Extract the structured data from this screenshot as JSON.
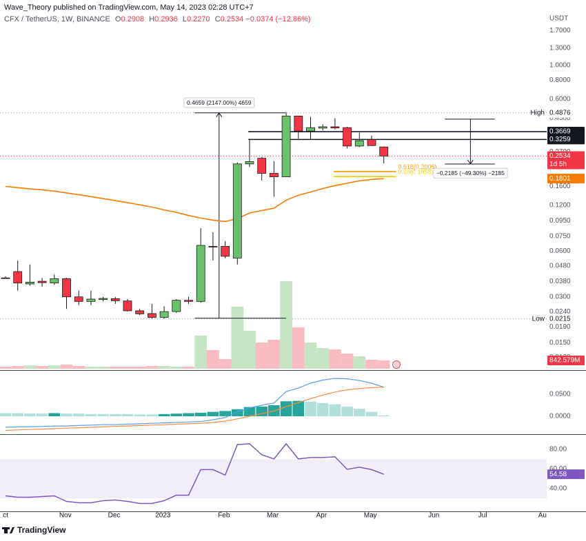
{
  "header": {
    "publisher": "Wave_Theory published on TradingView.com, May 14, 2023 02:28 UTC+7",
    "symbol": "CFX / TetherUS, 1W, BINANCE",
    "ohlc": [
      {
        "key": "O",
        "value": 0.2908,
        "label": "0.2908"
      },
      {
        "key": "H",
        "value": 0.2936,
        "label": "0.2936"
      },
      {
        "key": "L",
        "value": 0.227,
        "label": "0.2270"
      },
      {
        "key": "C",
        "value": 0.2534,
        "label": "0.2534"
      }
    ],
    "change": {
      "value": -0.0374,
      "label": "−0.0374"
    },
    "change_pct": {
      "value": -12.86,
      "label": "(−12.86%)"
    }
  },
  "footer": {
    "brand": "TradingView"
  },
  "chart_data": [
    {
      "type": "candlestick",
      "unit": "USDT",
      "log_scale": true,
      "grid": false,
      "x": [
        0,
        1,
        2,
        3,
        4,
        5,
        6,
        7,
        8,
        9,
        10,
        11,
        12,
        13,
        14,
        15,
        16,
        17,
        18,
        19,
        20,
        21,
        22,
        23,
        24,
        25,
        26,
        27,
        28,
        29,
        30,
        31
      ],
      "xlim": [
        -0.452,
        44.35
      ],
      "xticks": [
        {
          "value": 0,
          "label": "ct"
        },
        {
          "value": 4.9,
          "label": "Nov"
        },
        {
          "value": 8.9,
          "label": "Dec"
        },
        {
          "value": 12.9,
          "label": "2023"
        },
        {
          "value": 17.9,
          "label": "Feb"
        },
        {
          "value": 21.9,
          "label": "Mar"
        },
        {
          "value": 25.9,
          "label": "Apr"
        },
        {
          "value": 29.9,
          "label": "May"
        },
        {
          "value": 35.1,
          "label": "Jun"
        },
        {
          "value": 39.1,
          "label": "Jul"
        },
        {
          "value": 44.0,
          "label": "Au"
        }
      ],
      "open": [
        0.04,
        0.044,
        0.0365,
        0.038,
        0.037,
        0.0395,
        0.03,
        0.028,
        0.0288,
        0.0292,
        0.0282,
        0.0243,
        0.0233,
        0.022,
        0.024,
        0.0285,
        0.028,
        0.0645,
        0.0645,
        0.054,
        0.225,
        0.245,
        0.195,
        0.185,
        0.465,
        0.37,
        0.387,
        0.395,
        0.39,
        0.295,
        0.325,
        0.2908
      ],
      "high": [
        0.041,
        0.052,
        0.049,
        0.04,
        0.042,
        0.04,
        0.033,
        0.033,
        0.03,
        0.03,
        0.029,
        0.025,
        0.027,
        0.026,
        0.029,
        0.03,
        0.085,
        0.08,
        0.07,
        0.23,
        0.33,
        0.25,
        0.235,
        0.4876,
        0.465,
        0.46,
        0.41,
        0.45,
        0.395,
        0.36,
        0.345,
        0.2936
      ],
      "low": [
        0.0395,
        0.033,
        0.0355,
        0.035,
        0.036,
        0.025,
        0.0265,
        0.0265,
        0.028,
        0.027,
        0.024,
        0.0228,
        0.0215,
        0.0215,
        0.0235,
        0.027,
        0.0275,
        0.052,
        0.054,
        0.049,
        0.215,
        0.175,
        0.137,
        0.185,
        0.33,
        0.325,
        0.375,
        0.38,
        0.285,
        0.29,
        0.295,
        0.227
      ],
      "close": [
        0.0398,
        0.037,
        0.0375,
        0.0372,
        0.0395,
        0.03,
        0.028,
        0.029,
        0.0293,
        0.0283,
        0.0243,
        0.0232,
        0.022,
        0.024,
        0.0285,
        0.028,
        0.0655,
        0.064,
        0.0555,
        0.225,
        0.233,
        0.195,
        0.185,
        0.465,
        0.37,
        0.39,
        0.395,
        0.388,
        0.295,
        0.32,
        0.297,
        0.2534
      ],
      "up_color": "#6cbf6c",
      "down_color": "#f23645",
      "ylim": [
        0.0101,
        2.43
      ],
      "yticks": [
        {
          "value": 1.7,
          "label": "1.7000"
        },
        {
          "value": 1.3,
          "label": "1.3000"
        },
        {
          "value": 1.0,
          "label": "1.0000"
        },
        {
          "value": 0.8,
          "label": "0.8000"
        },
        {
          "value": 0.6,
          "label": "0.6000"
        },
        {
          "value": 0.45,
          "label": "0.4500"
        },
        {
          "value": 0.27,
          "label": "0.2700"
        },
        {
          "value": 0.16,
          "label": "0.1600"
        },
        {
          "value": 0.12,
          "label": "0.1200"
        },
        {
          "value": 0.095,
          "label": "0.0950"
        },
        {
          "value": 0.075,
          "label": "0.0750"
        },
        {
          "value": 0.06,
          "label": "0.0600"
        },
        {
          "value": 0.048,
          "label": "0.0480"
        },
        {
          "value": 0.038,
          "label": "0.0380"
        },
        {
          "value": 0.03,
          "label": "0.0300"
        },
        {
          "value": 0.024,
          "label": "0.0240"
        },
        {
          "value": 0.019,
          "label": "0.0190"
        },
        {
          "value": 0.015,
          "label": "0.0150"
        },
        {
          "value": 0.012,
          "label": "0.0120"
        }
      ],
      "ema": {
        "color": "#f57c00",
        "values": [
          0.16,
          0.157,
          0.154,
          0.152,
          0.149,
          0.145,
          0.141,
          0.137,
          0.133,
          0.129,
          0.125,
          0.121,
          0.117,
          0.112,
          0.108,
          0.103,
          0.099,
          0.096,
          0.094,
          0.098,
          0.107,
          0.111,
          0.115,
          0.13,
          0.14,
          0.147,
          0.155,
          0.162,
          0.168,
          0.174,
          0.178,
          0.1801
        ],
        "last_label": {
          "value": 0.1801,
          "label": "0.1801"
        }
      },
      "last_price": {
        "value": 0.2534,
        "label": "0.2534",
        "countdown": "1d 5h"
      },
      "high_marker": {
        "name": "High",
        "value": 0.4876,
        "label": "0.4876"
      },
      "low_marker": {
        "name": "Low",
        "value": 0.0215,
        "label": "0.0215"
      },
      "levels": [
        {
          "value": 0.3669,
          "label": "0.3669",
          "from_x": 19.9
        },
        {
          "value": 0.3259,
          "label": "0.3259",
          "from_x": 19.9
        }
      ],
      "fib": [
        {
          "label": "0.618(0.2006)",
          "value": 0.2006,
          "color": "#f7a21b",
          "from_x": 26.9,
          "to_x": 32.0
        },
        {
          "label": "0.65(0.1858)",
          "value": 0.1858,
          "color": "#f2d21b",
          "from_x": 26.9,
          "to_x": 32.0
        }
      ],
      "measures": [
        {
          "label": "0.4659 (2147.00%) 4659",
          "from": 0.0217,
          "to": 0.4876,
          "x": 17.5,
          "x0": 15.5,
          "x1": 23.0
        },
        {
          "label": "−0.2185 (−49.30%) −2185",
          "from": 0.4432,
          "to": 0.2247,
          "x": 38.1,
          "x0": 36.0,
          "x1": 40.1
        }
      ]
    },
    {
      "type": "bar",
      "values": [
        210,
        280,
        350,
        280,
        350,
        420,
        280,
        210,
        210,
        210,
        210,
        210,
        280,
        280,
        210,
        210,
        3365,
        1893,
        981,
        6309,
        3856,
        2664,
        2944,
        8903,
        4206,
        2664,
        2103,
        1963,
        1542,
        1262,
        911,
        842.579
      ],
      "ylim": [
        0,
        15000
      ],
      "up_color": "#c6e5c5",
      "down_color": "#f8bcc2",
      "last_label": {
        "value": 842.579,
        "label": "842.579M"
      }
    },
    {
      "type": "macd",
      "ylim": [
        -0.0328,
        0.1
      ],
      "yticks": [
        {
          "value": 0.05,
          "label": "0.0500"
        },
        {
          "value": 0,
          "label": "0.0000"
        }
      ],
      "macd": {
        "color": "#5b9cf6",
        "values": [
          -0.025,
          -0.024,
          -0.024,
          -0.023,
          -0.022,
          -0.022,
          -0.021,
          -0.02,
          -0.019,
          -0.019,
          -0.018,
          -0.017,
          -0.016,
          -0.015,
          -0.014,
          -0.013,
          -0.012,
          -0.008,
          -0.003,
          0.01,
          0.019,
          0.025,
          0.03,
          0.056,
          0.064,
          0.075,
          0.082,
          0.086,
          0.085,
          0.081,
          0.075,
          0.066
        ]
      },
      "signal": {
        "color": "#ff8a3d",
        "values": [
          -0.032,
          -0.031,
          -0.03,
          -0.029,
          -0.028,
          -0.027,
          -0.026,
          -0.025,
          -0.024,
          -0.023,
          -0.022,
          -0.021,
          -0.02,
          -0.019,
          -0.018,
          -0.017,
          -0.016,
          -0.014,
          -0.011,
          -0.006,
          0.0,
          0.006,
          0.012,
          0.022,
          0.031,
          0.04,
          0.048,
          0.055,
          0.06,
          0.063,
          0.065,
          0.066
        ]
      },
      "histogram": {
        "rising_color": "#26a69a",
        "falling_color": "#b2dfdb",
        "values": [
          0.007,
          0.007,
          0.006,
          0.006,
          0.007,
          0.006,
          0.006,
          0.005,
          0.005,
          0.005,
          0.005,
          0.004,
          0.004,
          0.005,
          0.006,
          0.007,
          0.008,
          0.01,
          0.012,
          0.016,
          0.021,
          0.022,
          0.025,
          0.034,
          0.035,
          0.033,
          0.03,
          0.027,
          0.022,
          0.017,
          0.01,
          0.002
        ]
      }
    },
    {
      "type": "line",
      "color": "#7e57c2",
      "ylim": [
        18.2,
        92.6
      ],
      "yticks": [
        {
          "value": 80,
          "label": "80.00"
        },
        {
          "value": 60,
          "label": "60.00"
        },
        {
          "value": 40,
          "label": "40.00"
        }
      ],
      "band": [
        30,
        70
      ],
      "values": [
        32.6,
        31.2,
        31.2,
        31.9,
        32.6,
        27.0,
        25.6,
        25.6,
        27.7,
        28.4,
        27.0,
        24.9,
        24.9,
        27.7,
        33.3,
        33.3,
        59.3,
        59.3,
        53.7,
        84.9,
        85.6,
        74.4,
        70.2,
        85.6,
        70.2,
        71.6,
        71.6,
        72.3,
        59.6,
        61.8,
        59.3,
        54.58
      ],
      "last_label": {
        "value": 54.58,
        "label": "54.58"
      }
    }
  ]
}
